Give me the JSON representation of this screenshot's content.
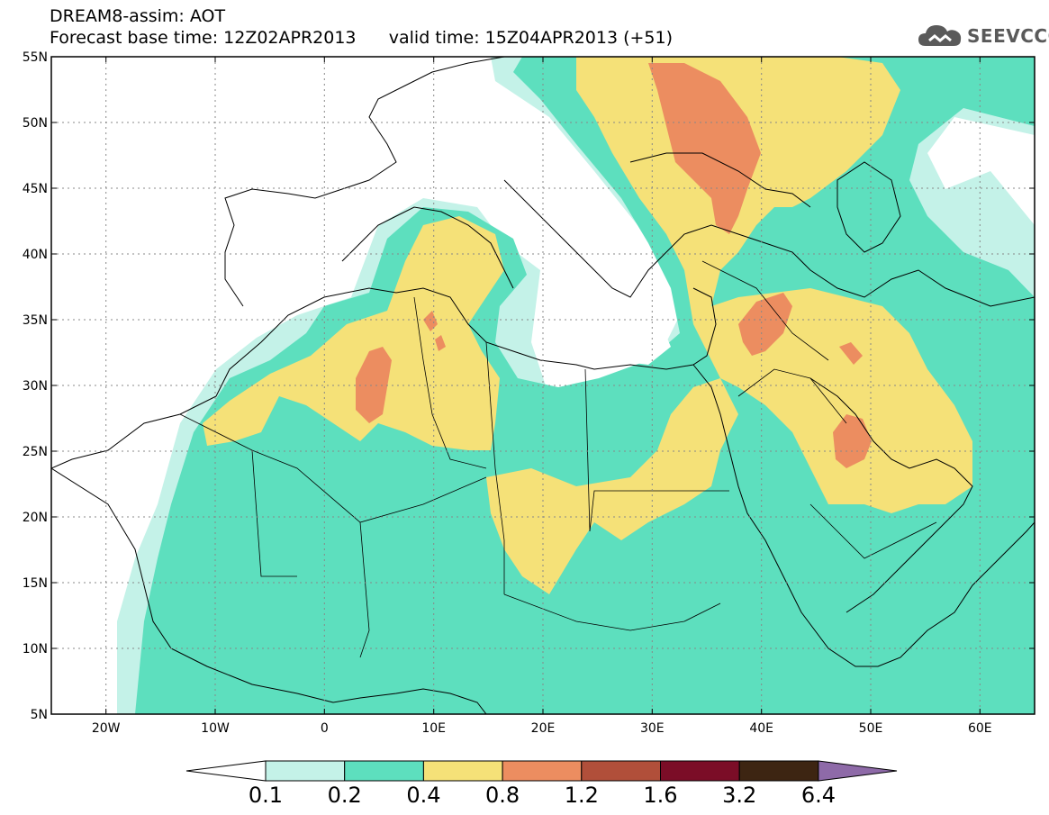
{
  "header": {
    "title": "DREAM8-assim: AOT",
    "base_time_label": "Forecast base time: 12Z02APR2013",
    "valid_time_label": "valid time: 15Z04APR2013 (+51)"
  },
  "logo": {
    "text": "SEEVCCC",
    "icon": "cloud-icon"
  },
  "map": {
    "projection": "lat-lon",
    "lon_range": [
      -25,
      65
    ],
    "lat_range": [
      5,
      55
    ],
    "lat_ticks": [
      "55N",
      "50N",
      "45N",
      "40N",
      "35N",
      "30N",
      "25N",
      "20N",
      "15N",
      "10N",
      "5N"
    ],
    "lon_ticks": [
      "20W",
      "10W",
      "0",
      "10E",
      "20E",
      "30E",
      "40E",
      "50E",
      "60E"
    ],
    "grid": "dotted"
  },
  "colorbar": {
    "levels": [
      "0.1",
      "0.2",
      "0.4",
      "0.8",
      "1.2",
      "1.6",
      "3.2",
      "6.4"
    ],
    "colors": [
      "#c4f2e8",
      "#5ddfbe",
      "#f5e178",
      "#ec8d60",
      "#b14f3a",
      "#7b0d27",
      "#3d2512",
      "#8e6aa8"
    ],
    "low_arrow_color": "#ffffff"
  },
  "colors": {
    "aot_01_02": "#c4f2e8",
    "aot_02_04": "#5ddfbe",
    "aot_04_08": "#f5e178",
    "aot_08_12": "#ec8d60",
    "coastline": "#000000",
    "grid": "#888888"
  }
}
